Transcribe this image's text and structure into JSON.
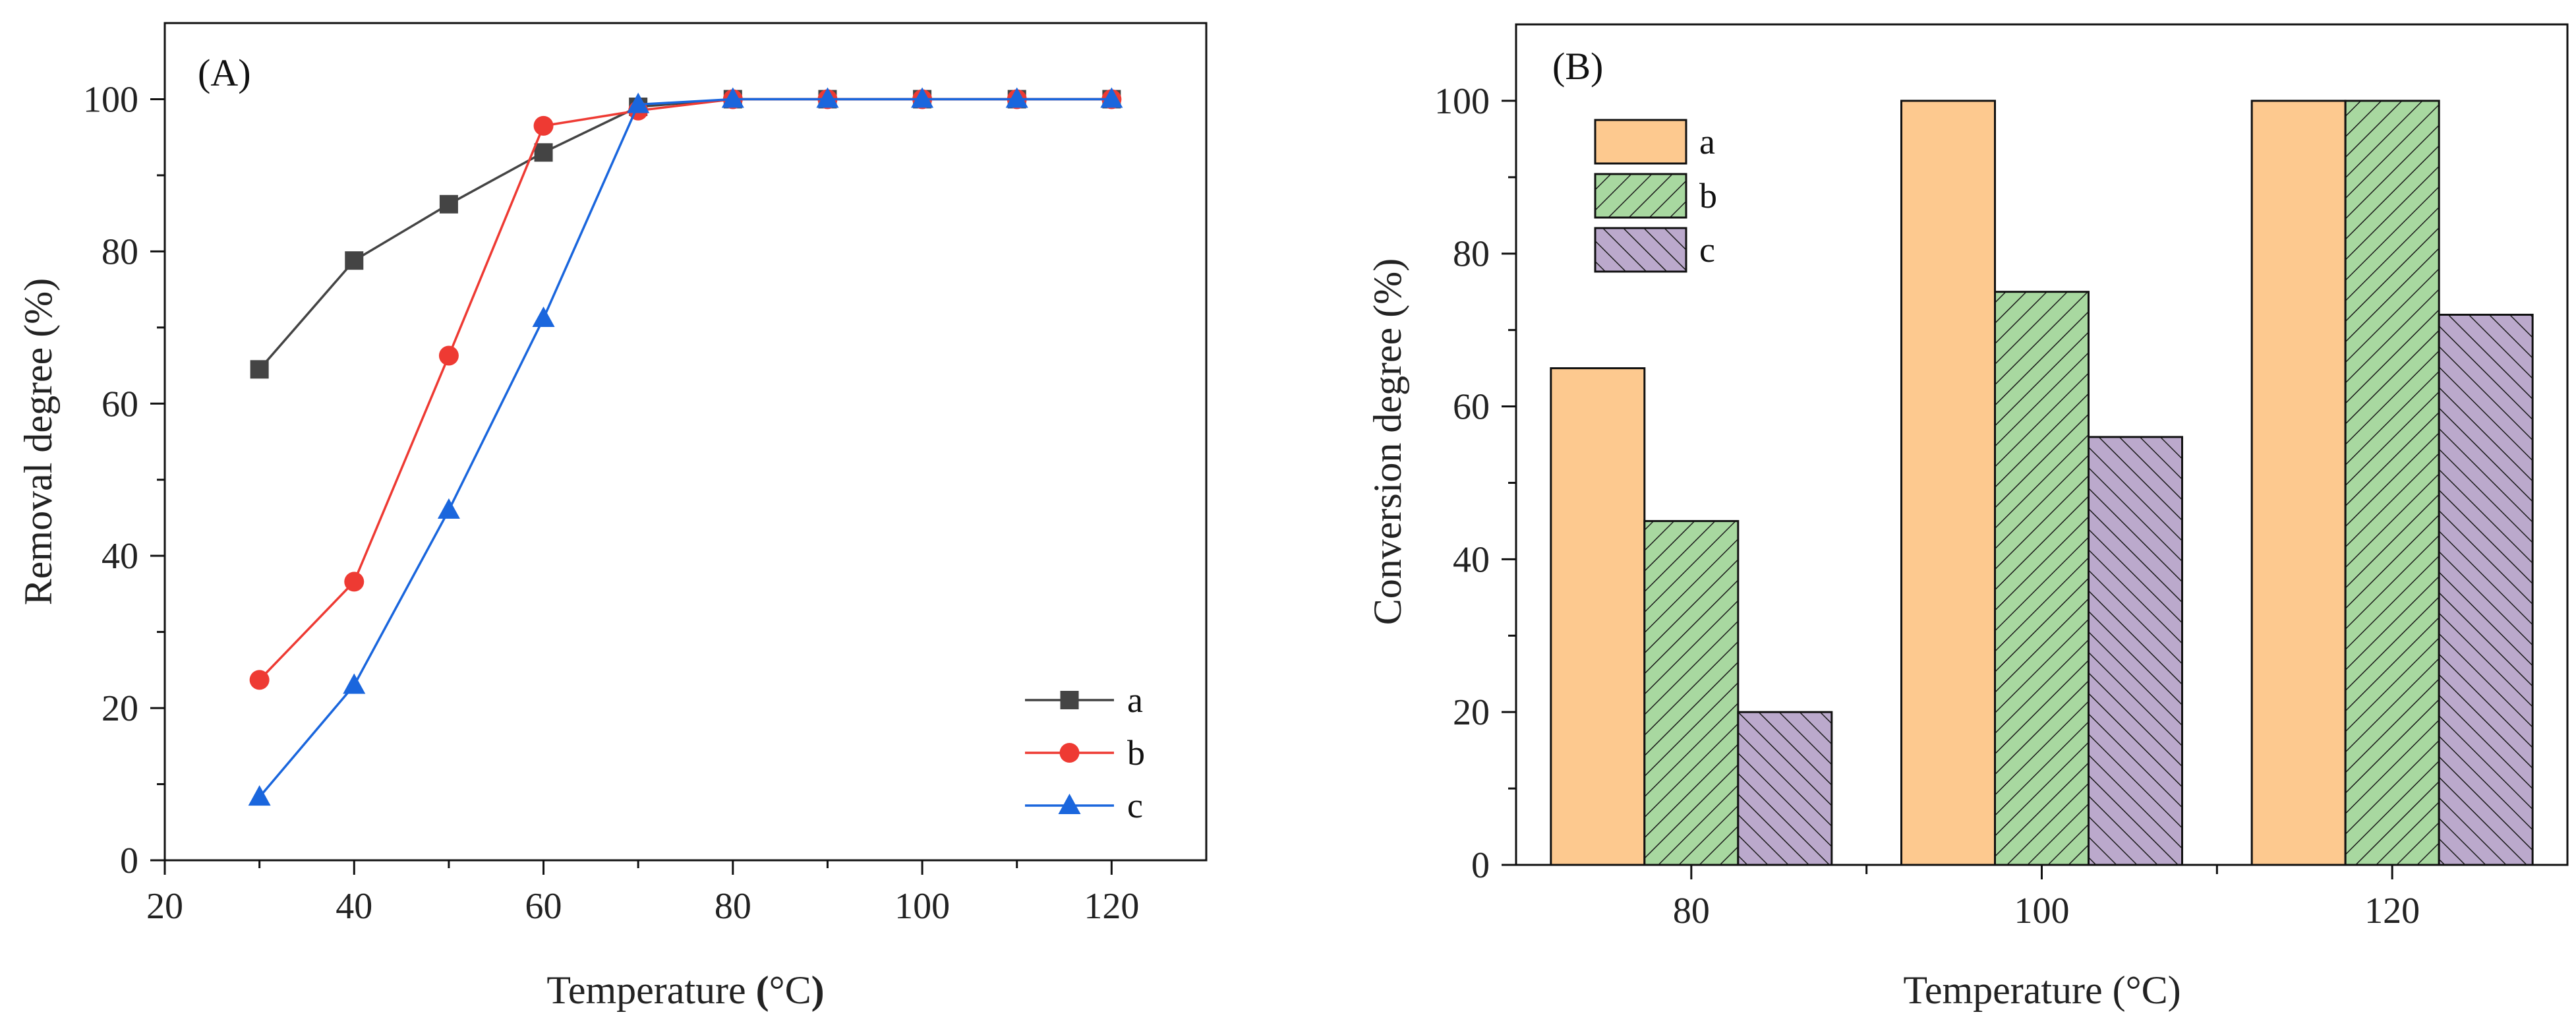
{
  "colors": {
    "series_a_line": "#444444",
    "series_b_line": "#ee3a33",
    "series_c_line": "#1a66dd",
    "bar_a": "#fdc98f",
    "bar_b": "#a8d8a0",
    "bar_c": "#bba9cc",
    "axis": "#111111",
    "hatch": "#1a1a1a"
  },
  "chart_data": [
    {
      "type": "line",
      "panel_label": "(A)",
      "xlabel_main": "Temperature ",
      "xlabel_paren_open": "(",
      "xlabel_unit": "°C",
      "xlabel_paren_close": ")",
      "ylabel": "Removal degree (%)",
      "xlim": [
        20,
        130
      ],
      "ylim": [
        0,
        110
      ],
      "xticks": [
        20,
        40,
        60,
        80,
        100,
        120
      ],
      "yticks": [
        0,
        20,
        40,
        60,
        80,
        100
      ],
      "x": [
        30,
        40,
        50,
        60,
        70,
        80,
        90,
        100,
        110,
        120
      ],
      "series": [
        {
          "name": "a",
          "marker": "square",
          "values": [
            64.5,
            78.8,
            86.2,
            93,
            99,
            100,
            100,
            100,
            100,
            100
          ]
        },
        {
          "name": "b",
          "marker": "circle",
          "values": [
            23.7,
            36.6,
            66.3,
            96.5,
            98.5,
            100,
            100,
            100,
            100,
            100
          ]
        },
        {
          "name": "c",
          "marker": "triangle",
          "values": [
            8.3,
            23,
            46,
            71.2,
            99.3,
            100,
            100,
            100,
            100,
            100
          ]
        }
      ],
      "legend_position": "bottom-right"
    },
    {
      "type": "bar",
      "panel_label": "(B)",
      "xlabel": "Temperature (°C)",
      "ylabel": "Conversion degree (%)",
      "categories": [
        "80",
        "100",
        "120"
      ],
      "ylim": [
        0,
        110
      ],
      "yticks": [
        0,
        20,
        40,
        60,
        80,
        100
      ],
      "series": [
        {
          "name": "a",
          "pattern": "solid",
          "values": [
            65,
            100,
            100
          ]
        },
        {
          "name": "b",
          "pattern": "hatch-forward",
          "values": [
            45,
            75,
            100
          ]
        },
        {
          "name": "c",
          "pattern": "hatch-backward",
          "values": [
            20,
            56,
            72
          ]
        }
      ],
      "legend_position": "top-left"
    }
  ]
}
